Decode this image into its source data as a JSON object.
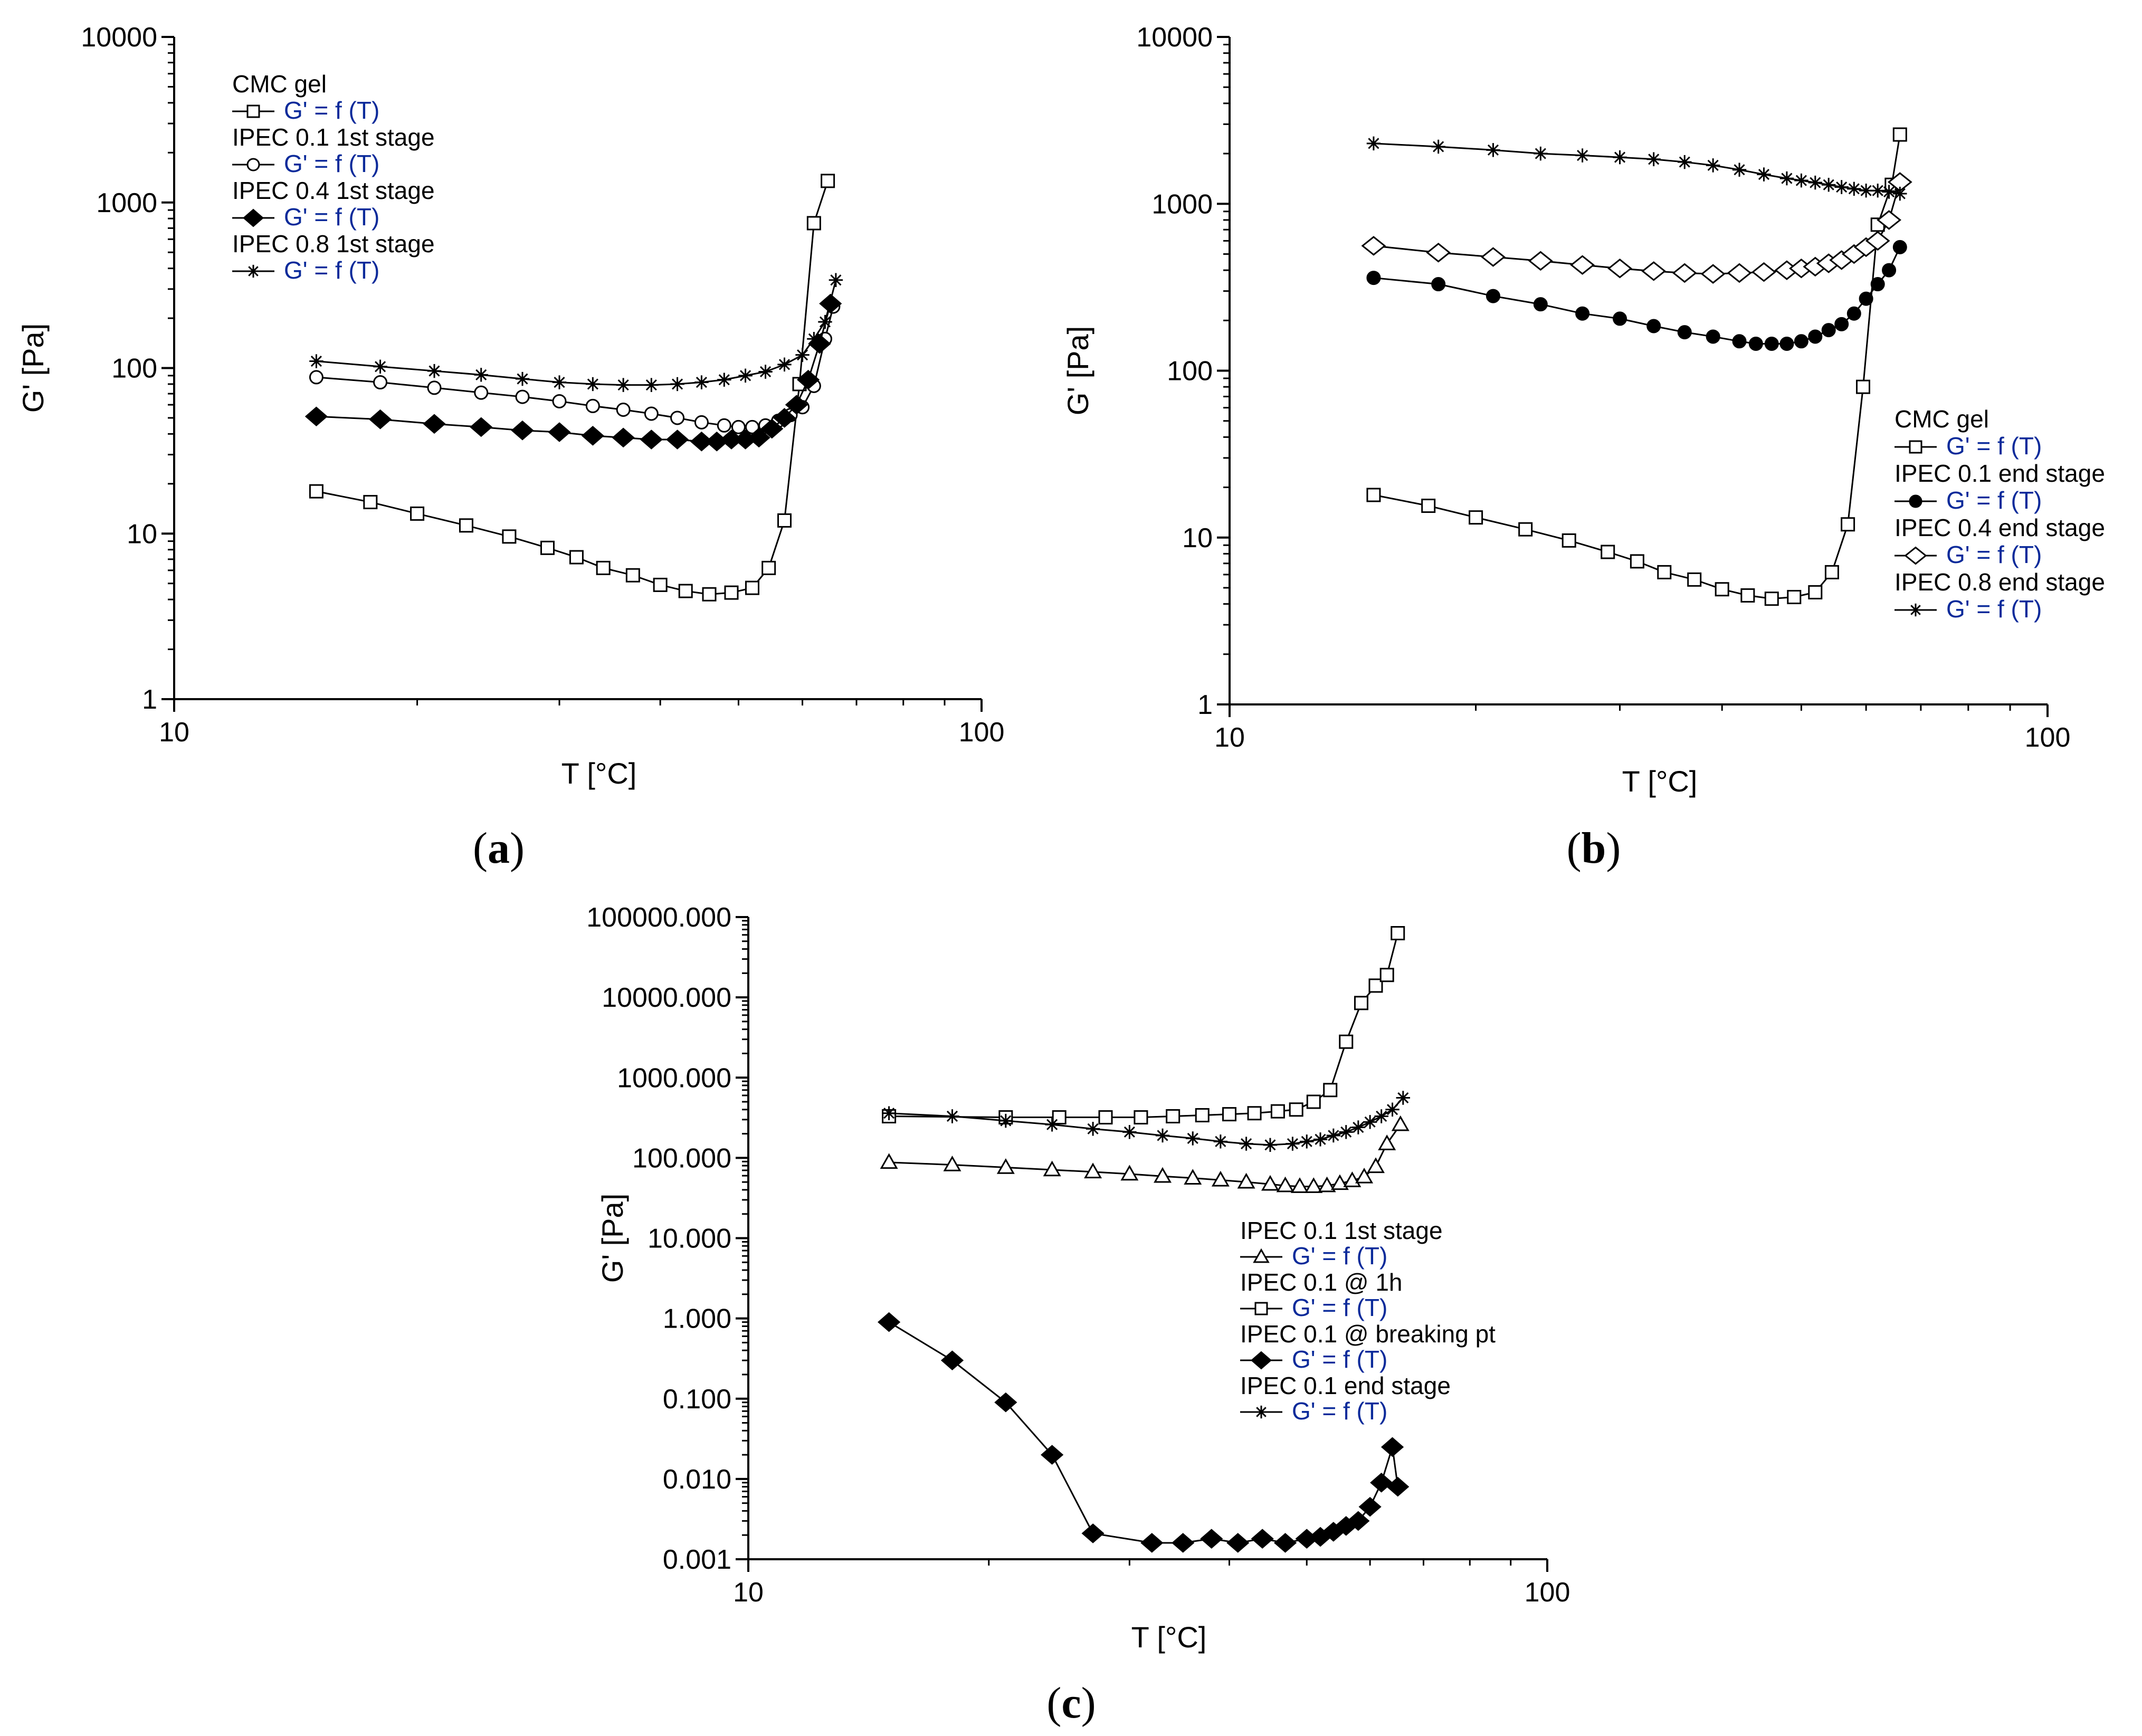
{
  "chart_data": [
    {
      "type": "line",
      "panel_label": "(a)",
      "xlabel": "T  [°C]",
      "ylabel": "G' [Pa]",
      "xscale": "log",
      "yscale": "log",
      "xlim": [
        10,
        100
      ],
      "ylim": [
        1,
        10000
      ],
      "xticks": [
        "10",
        "100"
      ],
      "yticks": [
        "1",
        "10",
        "100",
        "1000",
        "10000"
      ],
      "legend_position": "top-left",
      "series": [
        {
          "name": "CMC gel",
          "fn": "G' = f (T)",
          "marker": "open-square",
          "x": [
            15,
            17.5,
            20,
            23,
            26,
            29,
            31.5,
            34,
            37,
            40,
            43,
            46,
            49,
            52,
            54.5,
            57,
            59.5,
            62,
            64.5
          ],
          "y": [
            18,
            15.5,
            13.2,
            11.2,
            9.6,
            8.2,
            7.2,
            6.2,
            5.6,
            4.9,
            4.5,
            4.3,
            4.4,
            4.7,
            6.2,
            12,
            80,
            750,
            1350
          ]
        },
        {
          "name": "IPEC 0.1 1st stage",
          "fn": "G' = f (T)",
          "marker": "open-circle",
          "x": [
            15,
            18,
            21,
            24,
            27,
            30,
            33,
            36,
            39,
            42,
            45,
            48,
            50,
            52,
            54,
            56,
            58,
            60,
            62,
            64,
            65.5
          ],
          "y": [
            88,
            82,
            76,
            71,
            67,
            63,
            59,
            56,
            53,
            50,
            47,
            45,
            44,
            44,
            45,
            48,
            52,
            58,
            78,
            150,
            235
          ]
        },
        {
          "name": "IPEC 0.4 1st stage",
          "fn": "G' = f (T)",
          "marker": "filled-diamond",
          "x": [
            15,
            18,
            21,
            24,
            27,
            30,
            33,
            36,
            39,
            42,
            45,
            47,
            49,
            51,
            53,
            55,
            57,
            59,
            61,
            63,
            65
          ],
          "y": [
            51,
            49,
            46,
            44,
            42,
            41,
            39,
            38,
            37,
            37,
            36,
            36,
            37,
            37,
            38,
            43,
            50,
            60,
            85,
            140,
            245
          ]
        },
        {
          "name": "IPEC 0.8 1st stage",
          "fn": "G' = f (T)",
          "marker": "asterisk",
          "x": [
            15,
            18,
            21,
            24,
            27,
            30,
            33,
            36,
            39,
            42,
            45,
            48,
            51,
            54,
            57,
            60,
            62,
            64,
            66
          ],
          "y": [
            110,
            102,
            96,
            91,
            86,
            82,
            80,
            79,
            79,
            80,
            82,
            85,
            90,
            95,
            105,
            120,
            150,
            190,
            340
          ]
        }
      ]
    },
    {
      "type": "line",
      "panel_label": "(b)",
      "xlabel": "T  [°C]",
      "ylabel": "G' [Pa]",
      "xscale": "log",
      "yscale": "log",
      "xlim": [
        10,
        100
      ],
      "ylim": [
        1,
        10000
      ],
      "xticks": [
        "10",
        "100"
      ],
      "yticks": [
        "1",
        "10",
        "100",
        "1000",
        "10000"
      ],
      "legend_position": "right",
      "series": [
        {
          "name": "CMC gel",
          "fn": "G' = f (T)",
          "marker": "open-square",
          "x": [
            15,
            17.5,
            20,
            23,
            26,
            29,
            31.5,
            34,
            37,
            40,
            43,
            46,
            49,
            52,
            54.5,
            57,
            59.5,
            62,
            64.5,
            66
          ],
          "y": [
            18,
            15.5,
            13.2,
            11.2,
            9.6,
            8.2,
            7.2,
            6.2,
            5.6,
            4.9,
            4.5,
            4.3,
            4.4,
            4.7,
            6.2,
            12,
            80,
            750,
            1300,
            2600
          ]
        },
        {
          "name": "IPEC 0.1 end stage",
          "fn": "G' = f (T)",
          "marker": "filled-circle",
          "x": [
            15,
            18,
            21,
            24,
            27,
            30,
            33,
            36,
            39,
            42,
            44,
            46,
            48,
            50,
            52,
            54,
            56,
            58,
            60,
            62,
            64,
            66
          ],
          "y": [
            360,
            330,
            280,
            250,
            220,
            205,
            185,
            170,
            160,
            150,
            145,
            145,
            145,
            150,
            160,
            175,
            190,
            220,
            270,
            330,
            400,
            550
          ]
        },
        {
          "name": "IPEC 0.4 end stage",
          "fn": "G' = f (T)",
          "marker": "open-diamond",
          "x": [
            15,
            18,
            21,
            24,
            27,
            30,
            33,
            36,
            39,
            42,
            45,
            48,
            50,
            52,
            54,
            56,
            58,
            60,
            62,
            64,
            66
          ],
          "y": [
            560,
            510,
            480,
            455,
            430,
            410,
            395,
            385,
            380,
            385,
            390,
            400,
            410,
            420,
            440,
            460,
            500,
            550,
            600,
            800,
            1350
          ]
        },
        {
          "name": "IPEC 0.8 end stage",
          "fn": "G' = f (T)",
          "marker": "asterisk",
          "x": [
            15,
            18,
            21,
            24,
            27,
            30,
            33,
            36,
            39,
            42,
            45,
            48,
            50,
            52,
            54,
            56,
            58,
            60,
            62,
            64,
            66
          ],
          "y": [
            2300,
            2200,
            2100,
            2000,
            1950,
            1900,
            1850,
            1780,
            1700,
            1600,
            1500,
            1420,
            1380,
            1340,
            1300,
            1260,
            1230,
            1200,
            1200,
            1180,
            1150
          ]
        }
      ]
    },
    {
      "type": "line",
      "panel_label": "(c)",
      "xlabel": "T  [°C]",
      "ylabel": "G' [Pa]",
      "xscale": "log",
      "yscale": "log",
      "xlim": [
        10,
        100
      ],
      "ylim": [
        0.001,
        100000
      ],
      "xticks": [
        "10",
        "100"
      ],
      "yticks": [
        "0.001",
        "0.010",
        "0.100",
        "1.000",
        "10.000",
        "100.000",
        "1000.000",
        "10000.000",
        "100000.000"
      ],
      "legend_position": "right",
      "series": [
        {
          "name": "IPEC 0.1 1st stage",
          "fn": "G' = f (T)",
          "marker": "open-triangle",
          "x": [
            15,
            18,
            21,
            24,
            27,
            30,
            33,
            36,
            39,
            42,
            45,
            47,
            49,
            51,
            53,
            55,
            57,
            59,
            61,
            63,
            65.5
          ],
          "y": [
            88,
            82,
            76,
            71,
            67,
            63,
            59,
            56,
            53,
            50,
            47,
            45,
            44,
            44,
            45,
            48,
            52,
            58,
            78,
            150,
            260
          ]
        },
        {
          "name": "IPEC 0.1 @ 1h",
          "fn": "G' = f (T)",
          "marker": "open-square",
          "x": [
            15,
            21,
            24.5,
            28,
            31,
            34,
            37,
            40,
            43,
            46,
            48.5,
            51,
            53.5,
            56,
            58.5,
            61,
            63,
            65
          ],
          "y": [
            330,
            320,
            320,
            320,
            320,
            330,
            340,
            350,
            360,
            380,
            400,
            500,
            700,
            2800,
            8500,
            14000,
            19000,
            63000
          ]
        },
        {
          "name": "IPEC 0.1 @ breaking pt",
          "fn": "G' = f (T)",
          "marker": "filled-diamond",
          "x": [
            15,
            18,
            21,
            24,
            27,
            32,
            35,
            38,
            41,
            44,
            47,
            50,
            52,
            54,
            56,
            58,
            60,
            62,
            64,
            65
          ],
          "y": [
            0.9,
            0.3,
            0.09,
            0.02,
            0.0021,
            0.0016,
            0.0016,
            0.0018,
            0.0016,
            0.0018,
            0.0016,
            0.0018,
            0.0019,
            0.0022,
            0.0026,
            0.003,
            0.0045,
            0.009,
            0.025,
            0.008
          ]
        },
        {
          "name": "IPEC 0.1 end stage",
          "fn": "G' = f (T)",
          "marker": "asterisk",
          "x": [
            15,
            18,
            21,
            24,
            27,
            30,
            33,
            36,
            39,
            42,
            45,
            48,
            50,
            52,
            54,
            56,
            58,
            60,
            62,
            64,
            66
          ],
          "y": [
            360,
            330,
            290,
            260,
            230,
            210,
            190,
            175,
            160,
            150,
            145,
            150,
            160,
            170,
            190,
            210,
            240,
            280,
            330,
            400,
            560
          ]
        }
      ]
    }
  ]
}
